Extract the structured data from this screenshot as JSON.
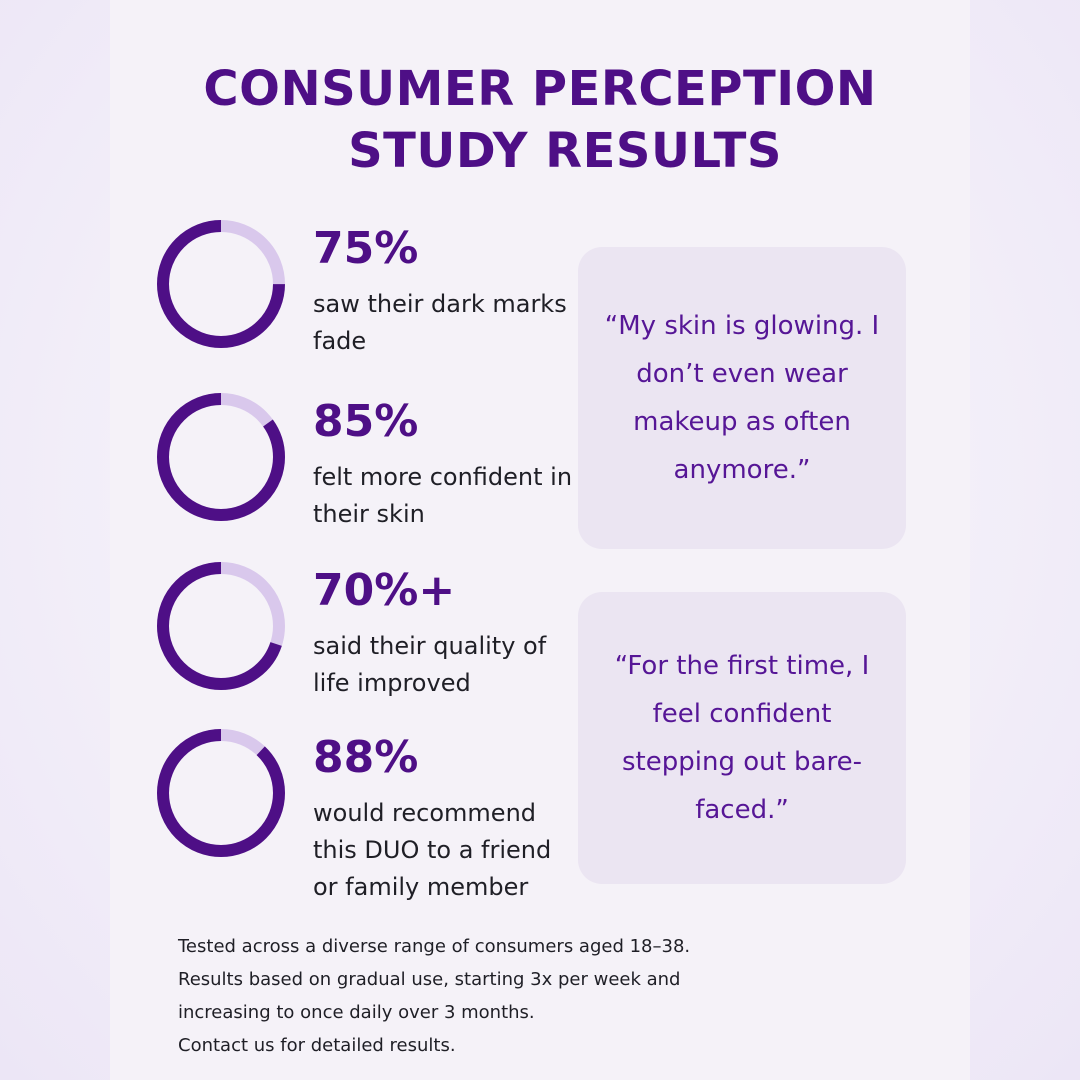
{
  "title_line1": "CONSUMER PERCEPTION",
  "title_line2": "STUDY RESULTS",
  "colors": {
    "accent": "#4e0f86",
    "ring_track": "#d9c8ec",
    "quote_text": "#561696",
    "card_background": "#ebe5f2"
  },
  "chart_data": {
    "type": "pie",
    "style": "donut",
    "items": [
      {
        "label": "75%",
        "value": 75,
        "caption": "saw their dark marks fade"
      },
      {
        "label": "85%",
        "value": 85,
        "caption": "felt more confident in their skin"
      },
      {
        "label": "70%+",
        "value": 70,
        "caption": "said their quality of life improved"
      },
      {
        "label": "88%",
        "value": 88,
        "caption": "would recommend this DUO to a friend or family member"
      }
    ]
  },
  "quotes": [
    "“My skin is glowing. I don’t even wear makeup as often anymore.”",
    "“For the first time, I feel confident stepping out bare-faced.”"
  ],
  "footnote": [
    "Tested across a diverse range of consumers aged 18–38.",
    "Results based on gradual use, starting 3x per week and",
    "increasing to once daily over 3 months.",
    "Contact us for detailed results."
  ]
}
